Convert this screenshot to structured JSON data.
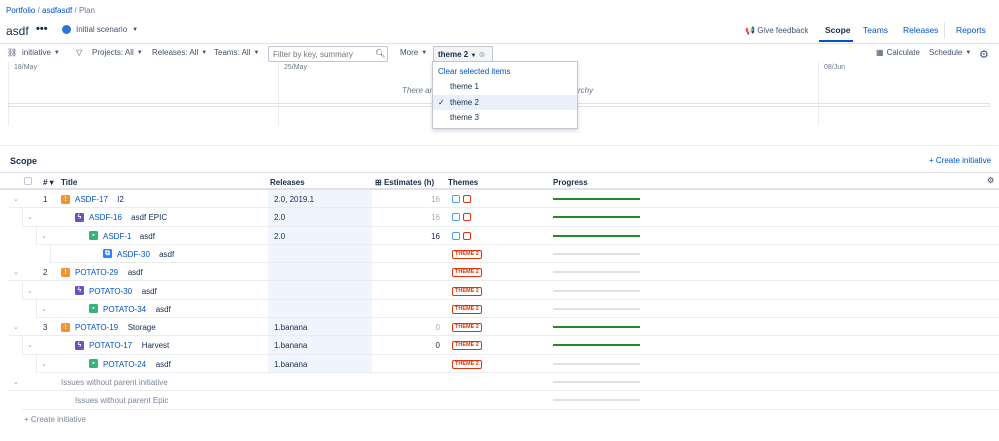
{
  "breadcrumb": {
    "items": [
      "Portfolio",
      "asdfasdf"
    ],
    "current": "Plan"
  },
  "header": {
    "title": "asdf",
    "more": "•••",
    "scenario": "Initial scenario",
    "feedback": "Give feedback",
    "tabs": [
      "Scope",
      "Teams",
      "Releases",
      "Reports"
    ],
    "active_tab": "Scope"
  },
  "toolbar": {
    "hierarchy": "initiative",
    "projects": "Projects: All",
    "releases": "Releases: All",
    "teams": "Teams: All",
    "search_placeholder": "Filter by key, summary",
    "more": "More",
    "theme_filter": "theme 2",
    "calculate": "Calculate",
    "schedule": "Schedule"
  },
  "theme_dropdown": {
    "clear": "Clear selected items",
    "options": [
      "theme 1",
      "theme 2",
      "theme 3"
    ],
    "selected": "theme 2"
  },
  "timeline": {
    "dates": [
      "18/May",
      "25/May",
      "08/Jun"
    ],
    "message_left": "There are",
    "message_right": "rchy"
  },
  "scope": {
    "title": "Scope",
    "create_initiative": "+ Create initiative",
    "columns": [
      "#",
      "Title",
      "Releases",
      "Estimates (h)",
      "Themes",
      "Progress"
    ],
    "rows": [
      {
        "level": 0,
        "num": "1",
        "type": "initiative",
        "key": "ASDF-17",
        "summary": "I2",
        "releases": "2.0, 2019.1",
        "estimate": "16",
        "theme": "",
        "progress": 1
      },
      {
        "level": 1,
        "num": "",
        "type": "epic",
        "key": "ASDF-16",
        "summary": "asdf EPIC",
        "releases": "2.0",
        "estimate": "16",
        "theme": "",
        "progress": 1
      },
      {
        "level": 2,
        "num": "",
        "type": "story",
        "key": "ASDF-1",
        "summary": "asdf",
        "releases": "2.0",
        "estimate": "16",
        "theme": "",
        "progress": 1
      },
      {
        "level": 3,
        "num": "",
        "type": "subtask",
        "key": "ASDF-30",
        "summary": "asdf",
        "releases": "",
        "estimate": "",
        "theme": "THEME 2",
        "progress": 0
      },
      {
        "level": 0,
        "num": "2",
        "type": "initiative",
        "key": "POTATO-29",
        "summary": "asdf",
        "releases": "",
        "estimate": "",
        "theme": "THEME 2",
        "progress": 0
      },
      {
        "level": 1,
        "num": "",
        "type": "epic",
        "key": "POTATO-30",
        "summary": "asdf",
        "releases": "",
        "estimate": "",
        "theme": "THEME 2",
        "progress": 0
      },
      {
        "level": 2,
        "num": "",
        "type": "story",
        "key": "POTATO-34",
        "summary": "asdf",
        "releases": "",
        "estimate": "",
        "theme": "THEME 2",
        "progress": 0
      },
      {
        "level": 0,
        "num": "3",
        "type": "initiative",
        "key": "POTATO-19",
        "summary": "Storage",
        "releases": "1.banana",
        "estimate": "0",
        "theme": "THEME 2",
        "progress": 1
      },
      {
        "level": 1,
        "num": "",
        "type": "epic",
        "key": "POTATO-17",
        "summary": "Harvest",
        "releases": "1.banana",
        "estimate": "0",
        "theme": "THEME 2",
        "progress": 1
      },
      {
        "level": 2,
        "num": "",
        "type": "story",
        "key": "POTATO-24",
        "summary": "asdf",
        "releases": "1.banana",
        "estimate": "",
        "theme": "THEME 2",
        "progress": 0
      }
    ],
    "orphan_initiative": "Issues without parent initiative",
    "orphan_epic": "Issues without parent Epic",
    "create_bottom": "+ Create initiative"
  }
}
